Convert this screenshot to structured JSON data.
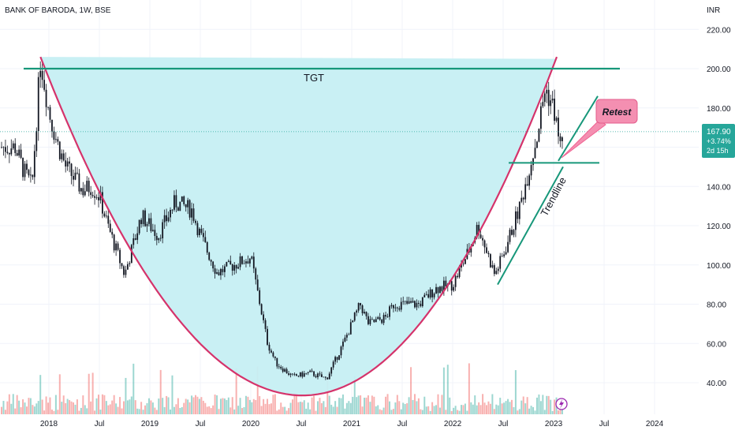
{
  "header": {
    "title": "BANK OF BARODA, 1W, BSE",
    "currency": "INR"
  },
  "price_badge": {
    "price": "167.90",
    "change": "+3.74%",
    "countdown": "2d 15h"
  },
  "annotations": {
    "target": "TGT",
    "retest": "Retest",
    "trendline": "Trendline"
  },
  "colors": {
    "cup_fill": "#c6eff3",
    "cup_line": "#d5336b",
    "target_line": "#17977a",
    "up": "#26a69a",
    "down": "#ef5350",
    "retest_fill": "#f48fb1"
  },
  "chart_data": {
    "type": "candlestick",
    "title": "BANK OF BARODA, 1W, BSE",
    "ylabel": "INR",
    "ylim": [
      25,
      230
    ],
    "yticks": [
      40,
      60,
      80,
      100,
      120,
      140,
      160,
      180,
      200,
      220
    ],
    "xticks": [
      "2018",
      "Jul",
      "2019",
      "Jul",
      "2020",
      "Jul",
      "2021",
      "Jul",
      "2022",
      "Jul",
      "2023",
      "Jul",
      "2024"
    ],
    "last_price": 167.9,
    "change_pct": "+3.74%",
    "target_level": 200,
    "retest_level": 152,
    "price_path": [
      [
        "2017-09",
        160
      ],
      [
        "2017-10",
        148
      ],
      [
        "2017-11",
        140
      ],
      [
        "2017-12",
        205
      ],
      [
        "2018-01",
        178
      ],
      [
        "2018-02",
        162
      ],
      [
        "2018-03",
        150
      ],
      [
        "2018-05",
        138
      ],
      [
        "2018-06",
        140
      ],
      [
        "2018-07",
        135
      ],
      [
        "2018-08",
        120
      ],
      [
        "2018-10",
        95
      ],
      [
        "2018-12",
        125
      ],
      [
        "2019-02",
        115
      ],
      [
        "2019-04",
        132
      ],
      [
        "2019-06",
        128
      ],
      [
        "2019-07",
        115
      ],
      [
        "2019-09",
        96
      ],
      [
        "2019-11",
        100
      ],
      [
        "2020-01",
        104
      ],
      [
        "2020-03",
        60
      ],
      [
        "2020-04",
        50
      ],
      [
        "2020-06",
        43
      ],
      [
        "2020-08",
        45
      ],
      [
        "2020-10",
        42
      ],
      [
        "2020-12",
        60
      ],
      [
        "2021-02",
        80
      ],
      [
        "2021-03",
        70
      ],
      [
        "2021-05",
        73
      ],
      [
        "2021-06",
        80
      ],
      [
        "2021-09",
        80
      ],
      [
        "2021-11",
        88
      ],
      [
        "2022-01",
        90
      ],
      [
        "2022-03",
        108
      ],
      [
        "2022-04",
        120
      ],
      [
        "2022-06",
        95
      ],
      [
        "2022-07",
        105
      ],
      [
        "2022-09",
        130
      ],
      [
        "2022-11",
        165
      ],
      [
        "2022-12",
        190
      ],
      [
        "2023-01",
        180
      ],
      [
        "2023-02",
        155
      ],
      [
        "2023-02",
        167.9
      ]
    ]
  }
}
